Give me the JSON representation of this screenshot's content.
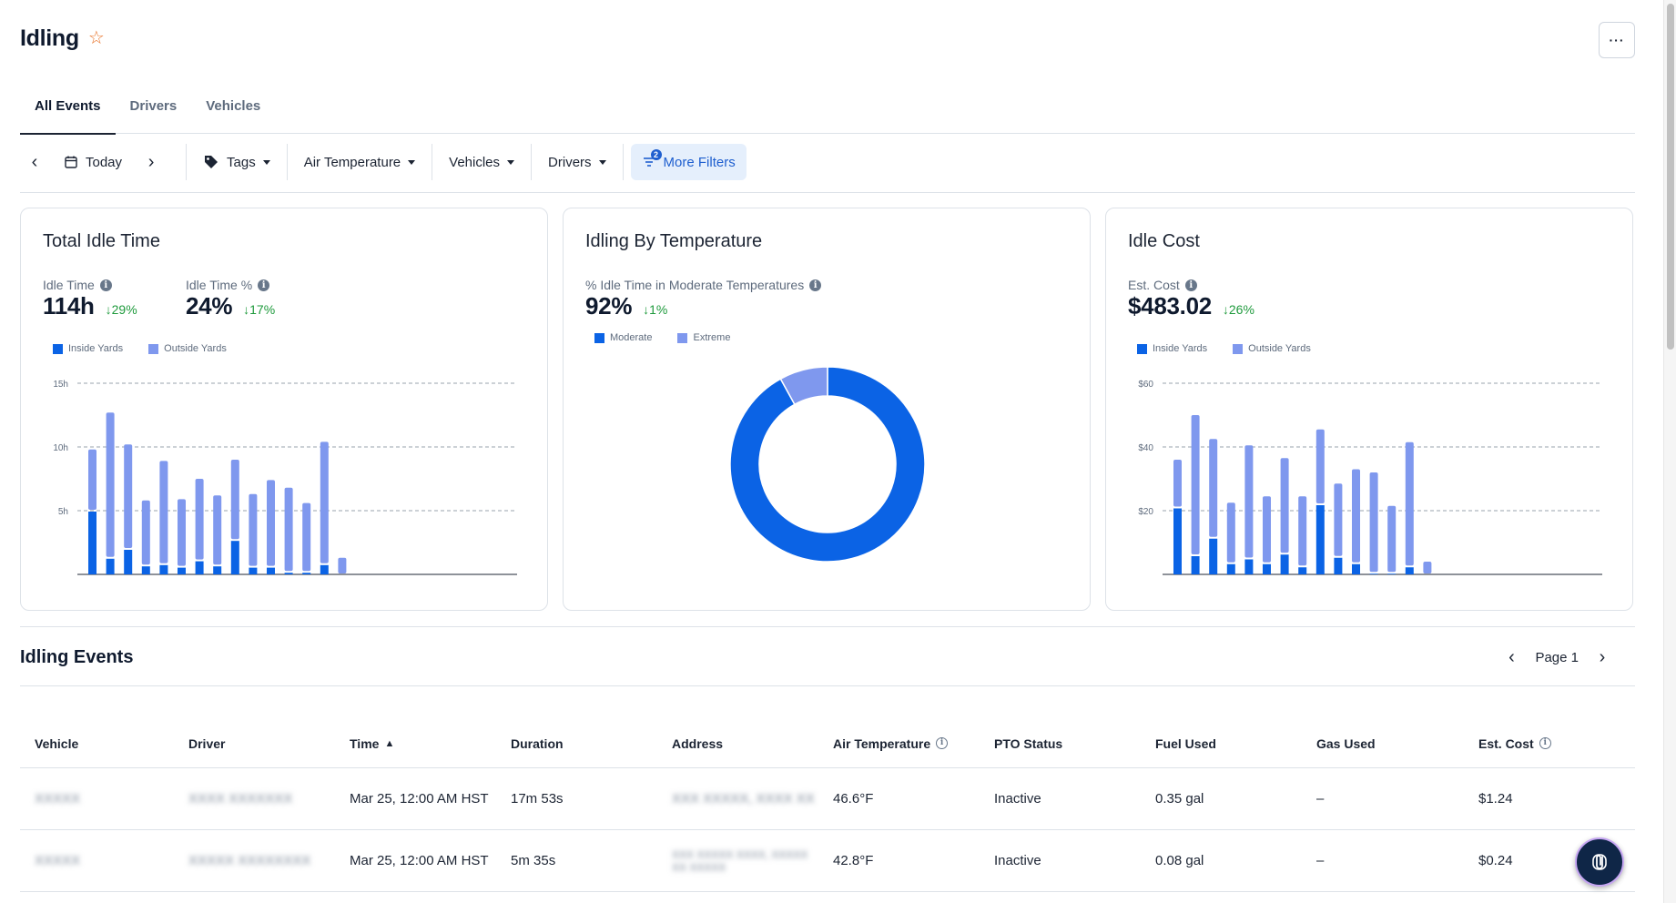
{
  "header": {
    "title": "Idling",
    "more_label": "···"
  },
  "tabs": [
    {
      "label": "All Events"
    },
    {
      "label": "Drivers"
    },
    {
      "label": "Vehicles"
    }
  ],
  "filters": {
    "date": "Today",
    "tags": "Tags",
    "air_temperature": "Air Temperature",
    "vehicles": "Vehicles",
    "drivers": "Drivers",
    "more_filters": "More Filters",
    "more_filters_count": "2"
  },
  "cards": {
    "idle_time": {
      "title": "Total Idle Time",
      "metric1": {
        "label": "Idle Time",
        "value": "114h",
        "delta": "29%"
      },
      "metric2": {
        "label": "Idle Time %",
        "value": "24%",
        "delta": "17%"
      },
      "legend": [
        "Inside Yards",
        "Outside Yards"
      ]
    },
    "temperature": {
      "title": "Idling By Temperature",
      "metric": {
        "label": "% Idle Time in Moderate Temperatures",
        "value": "92%",
        "delta": "1%"
      },
      "legend": [
        "Moderate",
        "Extreme"
      ]
    },
    "cost": {
      "title": "Idle Cost",
      "metric": {
        "label": "Est. Cost",
        "value": "$483.02",
        "delta": "26%"
      },
      "legend": [
        "Inside Yards",
        "Outside Yards"
      ]
    }
  },
  "chart_data": [
    {
      "type": "bar",
      "stacked": true,
      "series": [
        {
          "name": "Inside Yards",
          "color": "#0b63e5",
          "values": [
            5,
            1.3,
            2,
            0.7,
            0.8,
            0.6,
            1.1,
            0.7,
            2.7,
            0.6,
            0.6,
            0.2,
            0.2,
            0.8,
            0
          ]
        },
        {
          "name": "Outside Yards",
          "color": "#7f98ee",
          "values": [
            4.8,
            11.4,
            8.2,
            5.1,
            8.1,
            5.3,
            6.4,
            5.5,
            6.3,
            5.7,
            6.8,
            6.6,
            5.4,
            9.6,
            1.3
          ]
        }
      ],
      "yticks": [
        "5h",
        "10h",
        "15h"
      ],
      "ylim": [
        0,
        15
      ],
      "grid": true
    },
    {
      "type": "pie",
      "donut": true,
      "slices": [
        {
          "label": "Moderate",
          "value": 92,
          "color": "#0b63e5"
        },
        {
          "label": "Extreme",
          "value": 8,
          "color": "#7f98ee"
        }
      ]
    },
    {
      "type": "bar",
      "stacked": true,
      "series": [
        {
          "name": "Inside Yards",
          "color": "#0b63e5",
          "values": [
            21,
            6,
            11.5,
            3.5,
            5,
            3.5,
            6.5,
            2.5,
            22,
            5.5,
            3.5,
            0.5,
            0.5,
            2.5,
            0
          ]
        },
        {
          "name": "Outside Yards",
          "color": "#7f98ee",
          "values": [
            15,
            44,
            31,
            19,
            35.5,
            21,
            30,
            22,
            23.5,
            23,
            29.5,
            31.5,
            21,
            39,
            4
          ]
        }
      ],
      "yticks": [
        "$20",
        "$40",
        "$60"
      ],
      "ylim": [
        0,
        60
      ],
      "grid": true
    }
  ],
  "events": {
    "title": "Idling Events",
    "page_label": "Page 1",
    "columns": [
      "Vehicle",
      "Driver",
      "Time",
      "Duration",
      "Address",
      "Air Temperature",
      "PTO Status",
      "Fuel Used",
      "Gas Used",
      "Est. Cost"
    ],
    "rows": [
      {
        "vehicle": "XXXXX",
        "driver": "XXXX XXXXXXX",
        "time": "Mar 25, 12:00 AM HST",
        "duration": "17m 53s",
        "address": "XXX XXXXX, XXXX XX",
        "air_temp": "46.6°F",
        "pto": "Inactive",
        "fuel": "0.35 gal",
        "gas": "–",
        "cost": "$1.24"
      },
      {
        "vehicle": "XXXXX",
        "driver": "XXXXX XXXXXXXX",
        "time": "Mar 25, 12:00 AM HST",
        "duration": "5m 35s",
        "address": "XXX XXXXX XXXX, XXXXX XX XXXXX",
        "air_temp": "42.8°F",
        "pto": "Inactive",
        "fuel": "0.08 gal",
        "gas": "–",
        "cost": "$0.24"
      }
    ]
  }
}
